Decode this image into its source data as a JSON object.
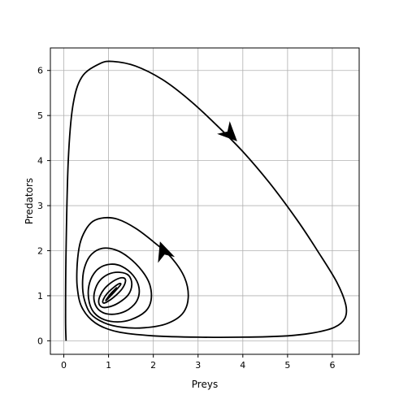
{
  "chart_data": {
    "type": "line",
    "title": "",
    "xlabel": "Preys",
    "ylabel": "Predators",
    "xlim": [
      -0.3,
      6.6
    ],
    "ylim": [
      -0.3,
      6.5
    ],
    "x_ticks": [
      0,
      1,
      2,
      3,
      4,
      5,
      6
    ],
    "y_ticks": [
      0,
      1,
      2,
      3,
      4,
      5,
      6
    ],
    "grid": true,
    "line_color": "#000000",
    "series": [
      {
        "x": [
          0.05,
          0.04,
          0.05,
          0.1,
          0.2,
          0.4,
          0.8,
          1.1,
          1.6,
          2.2,
          2.8,
          3.4,
          4.0,
          4.6,
          5.2,
          5.7,
          6.1,
          6.3,
          6.28,
          6.05,
          5.6,
          5.0,
          4.0,
          3.0,
          2.0,
          1.2,
          0.7,
          0.4,
          0.3,
          0.3,
          0.36,
          0.48,
          0.65,
          0.9,
          1.2,
          1.6,
          2.0,
          2.4,
          2.7,
          2.78,
          2.65,
          2.3,
          1.8,
          1.3,
          0.9,
          0.6,
          0.45,
          0.42,
          0.48,
          0.62,
          0.85,
          1.15,
          1.45,
          1.75,
          1.92,
          1.95,
          1.82,
          1.5,
          1.2,
          0.9,
          0.68,
          0.57,
          0.55,
          0.63,
          0.8,
          1.05,
          1.3,
          1.55,
          1.68,
          1.64,
          1.45,
          1.2,
          0.95,
          0.77,
          0.68,
          0.69,
          0.8,
          1.0,
          1.25,
          1.45,
          1.52,
          1.44,
          1.22,
          1.0,
          0.85,
          0.78,
          0.82,
          0.95,
          1.15,
          1.32,
          1.38,
          1.3,
          1.12,
          0.96,
          0.88,
          0.88,
          0.97,
          1.12,
          1.24,
          1.27,
          1.18,
          1.05,
          0.96,
          0.94,
          1.0,
          1.1,
          1.17,
          1.16,
          1.08,
          1.01,
          0.99,
          1.03,
          1.09,
          1.11,
          1.06,
          1.04
        ],
        "y": [
          0.0,
          0.5,
          2.0,
          4.0,
          5.2,
          5.85,
          6.15,
          6.2,
          6.1,
          5.8,
          5.35,
          4.8,
          4.2,
          3.5,
          2.7,
          1.95,
          1.3,
          0.8,
          0.5,
          0.3,
          0.18,
          0.11,
          0.08,
          0.08,
          0.11,
          0.2,
          0.4,
          0.75,
          1.2,
          1.7,
          2.15,
          2.45,
          2.65,
          2.73,
          2.7,
          2.5,
          2.2,
          1.85,
          1.4,
          0.95,
          0.6,
          0.38,
          0.29,
          0.3,
          0.4,
          0.6,
          0.95,
          1.35,
          1.68,
          1.92,
          2.05,
          2.02,
          1.85,
          1.55,
          1.25,
          0.9,
          0.65,
          0.47,
          0.42,
          0.47,
          0.62,
          0.85,
          1.15,
          1.42,
          1.62,
          1.7,
          1.65,
          1.45,
          1.18,
          0.9,
          0.7,
          0.6,
          0.6,
          0.7,
          0.88,
          1.1,
          1.33,
          1.48,
          1.52,
          1.45,
          1.25,
          1.02,
          0.84,
          0.75,
          0.75,
          0.85,
          1.02,
          1.2,
          1.35,
          1.4,
          1.33,
          1.15,
          0.97,
          0.86,
          0.84,
          0.91,
          1.05,
          1.19,
          1.27,
          1.25,
          1.14,
          1.0,
          0.91,
          0.9,
          0.98,
          1.09,
          1.17,
          1.16,
          1.08,
          1.0,
          0.96,
          0.99,
          1.06,
          1.1,
          1.06,
          1.01
        ]
      }
    ],
    "arrows": [
      {
        "x": 3.72,
        "y": 4.58,
        "dx": 1.0,
        "dy": -1.0
      },
      {
        "x": 2.22,
        "y": 2.0,
        "dx": -0.35,
        "dy": 1.0
      }
    ]
  }
}
